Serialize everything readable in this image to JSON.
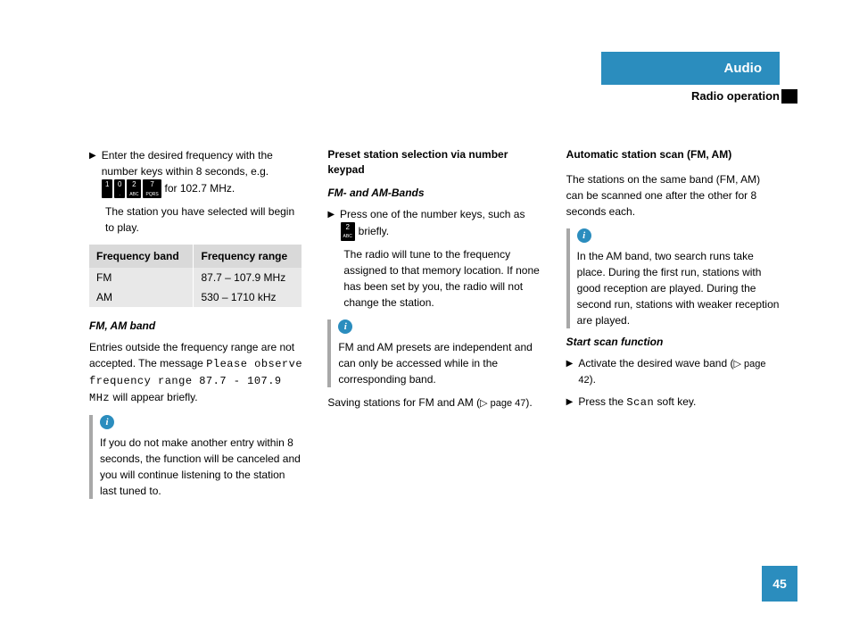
{
  "header": {
    "tab": "Audio",
    "sub": "Radio operation"
  },
  "page_number": "45",
  "colors": {
    "accent": "#2b8dbe",
    "info_bar": "#a8a8a8",
    "table_header": "#d9d9d9",
    "table_body": "#e8e8e8"
  },
  "col1": {
    "bullet1_a": "Enter the desired frequency with the number keys within 8 seconds, e.g.",
    "bullet1_b": " for 102.7 MHz.",
    "keys": [
      "1",
      "0",
      "2",
      "7"
    ],
    "keys_sub": [
      "",
      ".",
      "ABC",
      "PQRS"
    ],
    "para1": "The station you have selected will begin to play.",
    "table": {
      "headers": [
        "Frequency band",
        "Frequency range"
      ],
      "rows": [
        [
          "FM",
          "87.7 – 107.9 MHz"
        ],
        [
          "AM",
          "530 – 1710 kHz"
        ]
      ]
    },
    "heading1": "FM, AM band",
    "para2_a": "Entries outside the frequency range are not accepted. The message ",
    "para2_mono": "Please observe frequency range 87.7 - 107.9 MHz",
    "para2_b": " will appear briefly.",
    "info1": "If you do not make another entry within 8 seconds, the function will be canceled and you will continue listening to the station last tuned to."
  },
  "col2": {
    "heading1": "Preset station selection via number keypad",
    "heading2": "FM- and AM-Bands",
    "bullet1_a": "Press one of the number keys, such as ",
    "bullet1_b": " briefly.",
    "key": "2",
    "key_sub": "ABC",
    "para1": "The radio will tune to the frequency assigned to that memory location. If none has been set by you, the radio will not change the station.",
    "info1": "FM and AM presets are independent and can only be accessed while in the corresponding band.",
    "para2_a": "Saving stations for FM and AM (",
    "para2_ref": "▷ page 47",
    "para2_b": ")."
  },
  "col3": {
    "heading1": "Automatic station scan (FM, AM)",
    "para1": "The stations on the same band (FM, AM) can be scanned one after the other for 8 seconds each.",
    "info1": "In the AM band, two search runs take place. During the first run, stations with good reception are played. During the second run, stations with weaker reception are played.",
    "heading2": "Start scan function",
    "bullet1_a": "Activate the desired wave band (",
    "bullet1_ref": "▷ page 42",
    "bullet1_b": ").",
    "bullet2_a": "Press the ",
    "bullet2_mono": "Scan",
    "bullet2_b": " soft key."
  }
}
